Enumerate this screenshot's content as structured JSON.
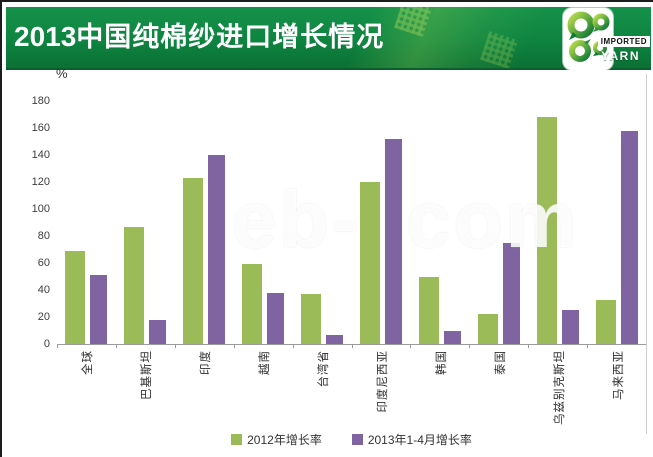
{
  "header": {
    "title_year": "2013",
    "title_text": "中国纯棉纱进口增长情况",
    "banner_color": "#0e8440",
    "logo": {
      "line1": "IMPORTED",
      "line2": "YARN"
    }
  },
  "chart_data": {
    "type": "bar",
    "title": "2013中国纯棉纱进口增长情况",
    "unit_label": "%",
    "categories": [
      "全球",
      "巴基斯坦",
      "印度",
      "越南",
      "台湾省",
      "印度尼西亚",
      "韩国",
      "泰国",
      "乌兹别克斯坦",
      "马来西亚"
    ],
    "series": [
      {
        "name": "2012年增长率",
        "color": "#9bbb59",
        "values": [
          69,
          87,
          123,
          59,
          37,
          120,
          50,
          22,
          168,
          33
        ]
      },
      {
        "name": "2013年1-4月增长率",
        "color": "#8064a2",
        "values": [
          51,
          18,
          140,
          38,
          7,
          152,
          10,
          75,
          25,
          158
        ]
      }
    ],
    "ylim": [
      0,
      180
    ],
    "ytick_step": 20,
    "grid": false,
    "legend_position": "bottom"
  },
  "watermark": {
    "fragments": [
      "eb-",
      "com"
    ]
  }
}
